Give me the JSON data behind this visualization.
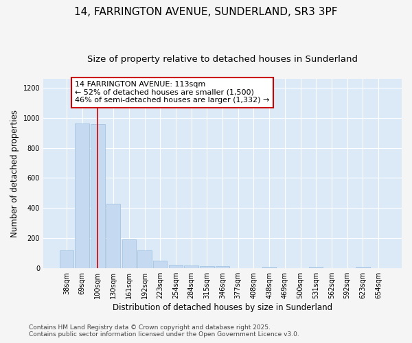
{
  "title_line1": "14, FARRINGTON AVENUE, SUNDERLAND, SR3 3PF",
  "title_line2": "Size of property relative to detached houses in Sunderland",
  "xlabel": "Distribution of detached houses by size in Sunderland",
  "ylabel": "Number of detached properties",
  "categories": [
    "38sqm",
    "69sqm",
    "100sqm",
    "130sqm",
    "161sqm",
    "192sqm",
    "223sqm",
    "254sqm",
    "284sqm",
    "315sqm",
    "346sqm",
    "377sqm",
    "408sqm",
    "438sqm",
    "469sqm",
    "500sqm",
    "531sqm",
    "562sqm",
    "592sqm",
    "623sqm",
    "654sqm"
  ],
  "values": [
    120,
    965,
    960,
    430,
    193,
    120,
    48,
    20,
    16,
    13,
    11,
    0,
    0,
    7,
    0,
    0,
    8,
    0,
    0,
    8,
    0
  ],
  "bar_color": "#c5d9f0",
  "bar_edge_color": "#9bbfe0",
  "highlight_bar_index": 2,
  "highlight_color": "#cc0000",
  "annotation_line1": "14 FARRINGTON AVENUE: 113sqm",
  "annotation_line2": "← 52% of detached houses are smaller (1,500)",
  "annotation_line3": "46% of semi-detached houses are larger (1,332) →",
  "ylim": [
    0,
    1260
  ],
  "yticks": [
    0,
    200,
    400,
    600,
    800,
    1000,
    1200
  ],
  "fig_background": "#f5f5f5",
  "plot_background": "#dce9f7",
  "grid_color": "#ffffff",
  "footer_line1": "Contains HM Land Registry data © Crown copyright and database right 2025.",
  "footer_line2": "Contains public sector information licensed under the Open Government Licence v3.0.",
  "title_fontsize": 11,
  "subtitle_fontsize": 9.5,
  "axis_label_fontsize": 8.5,
  "tick_fontsize": 7,
  "annotation_fontsize": 8,
  "footer_fontsize": 6.5
}
